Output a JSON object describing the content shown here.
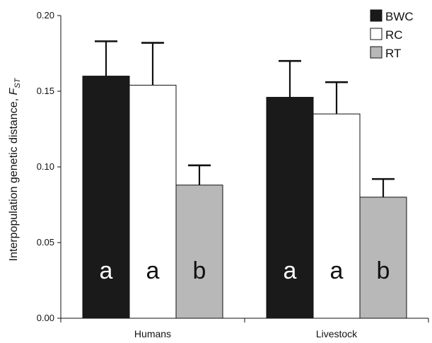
{
  "chart_data": {
    "type": "bar",
    "categories": [
      "Humans",
      "Livestock"
    ],
    "ylabel": "Interpopulation genetic distance, ",
    "ylabel_var": "F",
    "ylabel_sub": "ST",
    "ylim": [
      0,
      0.2
    ],
    "yticks": [
      "0.00",
      "0.05",
      "0.10",
      "0.15",
      "0.20"
    ],
    "ytick_values": [
      0,
      0.05,
      0.1,
      0.15,
      0.2
    ],
    "legend_position": "top-right",
    "grid": false,
    "series": [
      {
        "name": "BWC",
        "color": "#1a1a1a",
        "values": [
          0.16,
          0.146
        ],
        "errors": [
          0.023,
          0.024
        ],
        "letters": [
          "a",
          "a"
        ],
        "letter_color": "#ffffff"
      },
      {
        "name": "RC",
        "color": "#ffffff",
        "values": [
          0.154,
          0.135
        ],
        "errors": [
          0.028,
          0.021
        ],
        "letters": [
          "a",
          "a"
        ],
        "letter_color": "#111111"
      },
      {
        "name": "RT",
        "color": "#b8b8b8",
        "values": [
          0.088,
          0.08
        ],
        "errors": [
          0.013,
          0.012
        ],
        "letters": [
          "b",
          "b"
        ],
        "letter_color": "#111111"
      }
    ]
  }
}
